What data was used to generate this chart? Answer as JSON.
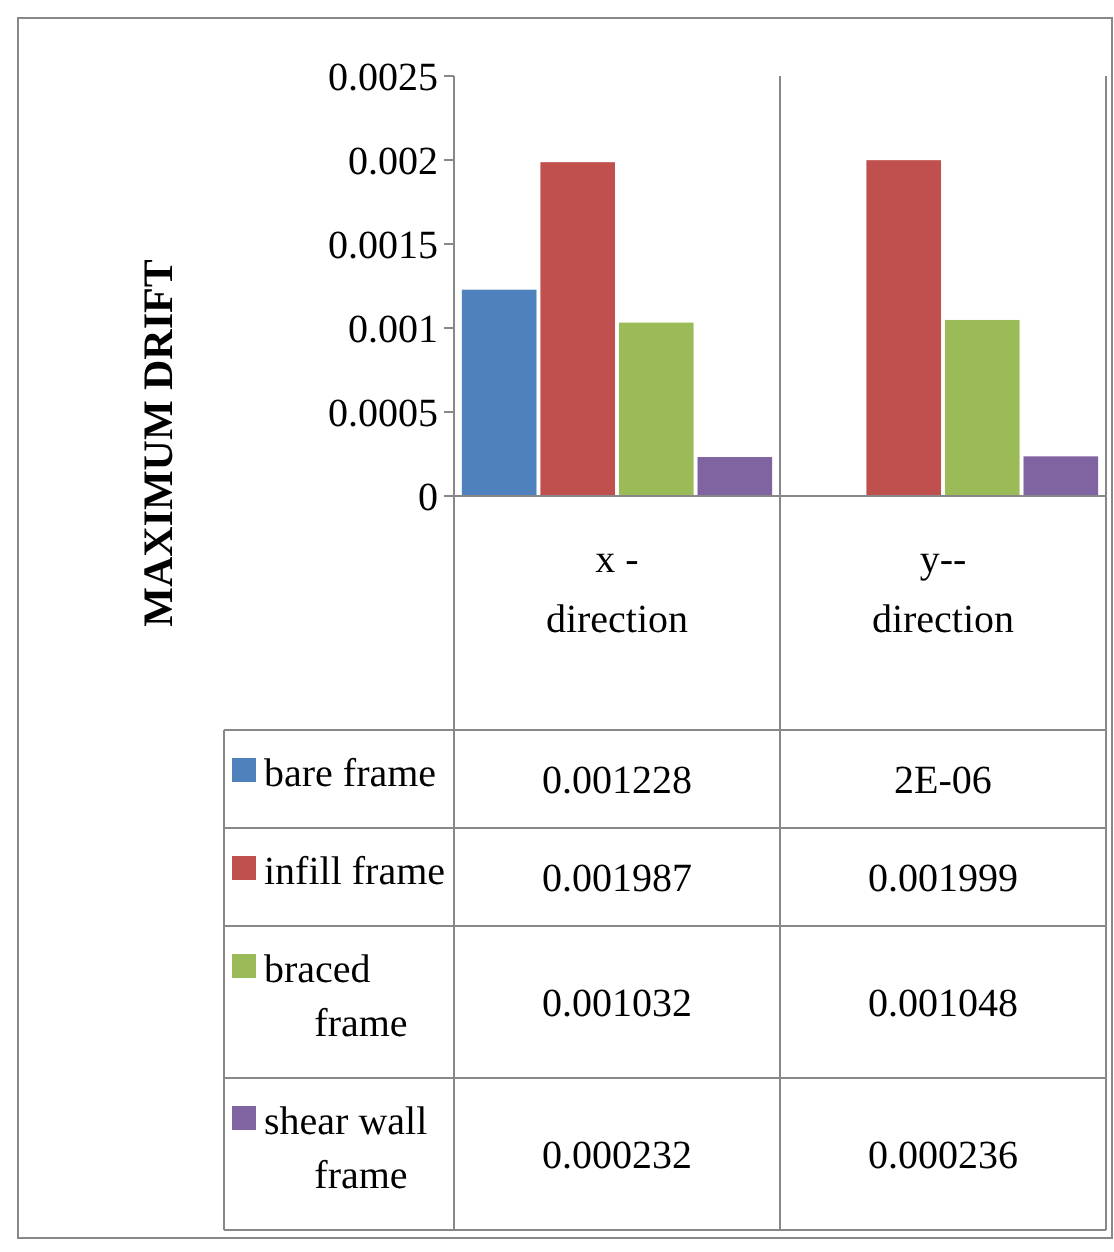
{
  "chart_data": {
    "type": "bar",
    "ylabel": "MAXIMUM DRIFT",
    "categories": [
      "x - direction",
      "y-- direction"
    ],
    "series": [
      {
        "name": "bare frame",
        "color": "#4f81bd",
        "values": [
          0.001228,
          2e-06
        ],
        "value_labels": [
          "0.001228",
          "2E-06"
        ]
      },
      {
        "name": "infill frame",
        "color": "#c0504d",
        "values": [
          0.001987,
          0.001999
        ],
        "value_labels": [
          "0.001987",
          "0.001999"
        ]
      },
      {
        "name": "braced frame",
        "color": "#9bbb59",
        "values": [
          0.001032,
          0.001048
        ],
        "value_labels": [
          "0.001032",
          "0.001048"
        ]
      },
      {
        "name": "shear wall frame",
        "color": "#8064a2",
        "values": [
          0.000232,
          0.000236
        ],
        "value_labels": [
          "0.000232",
          "0.000236"
        ]
      }
    ],
    "ylim": [
      0,
      0.0025
    ],
    "yticks": [
      0,
      0.0005,
      0.001,
      0.0015,
      0.002,
      0.0025
    ],
    "grid": false,
    "legend": "bottom"
  }
}
